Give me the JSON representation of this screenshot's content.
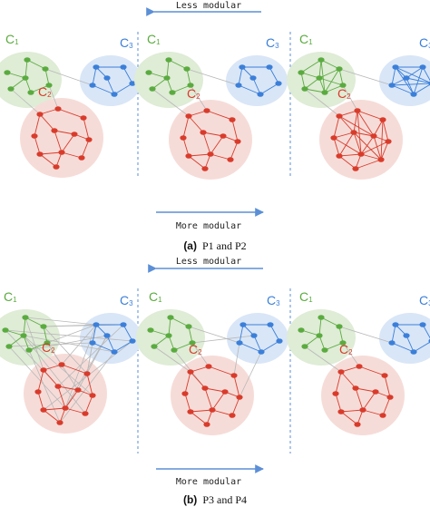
{
  "figure": {
    "panel_a": {
      "caption_letter": "(a)",
      "caption_text": "P1 and P2",
      "top_arrow_label": "Less modular",
      "bottom_arrow_label": "More modular"
    },
    "panel_b": {
      "caption_letter": "(b)",
      "caption_text": "P3 and P4",
      "top_arrow_label": "Less modular",
      "bottom_arrow_label": "More modular"
    },
    "community_labels": {
      "c1": {
        "letter": "C",
        "sub": "1"
      },
      "c2": {
        "letter": "C",
        "sub": "2"
      },
      "c3": {
        "letter": "C",
        "sub": "3"
      }
    },
    "colors": {
      "green": "#5aab3f",
      "green_blob": "#dfecd6",
      "red": "#d93b2b",
      "red_blob": "#f6dcd8",
      "blue": "#3b7fd9",
      "blue_blob": "#d9e6f7",
      "arrow": "#5b8fd6",
      "divider": "#5b8fd6",
      "inter_edge": "#b8b8b8"
    }
  }
}
